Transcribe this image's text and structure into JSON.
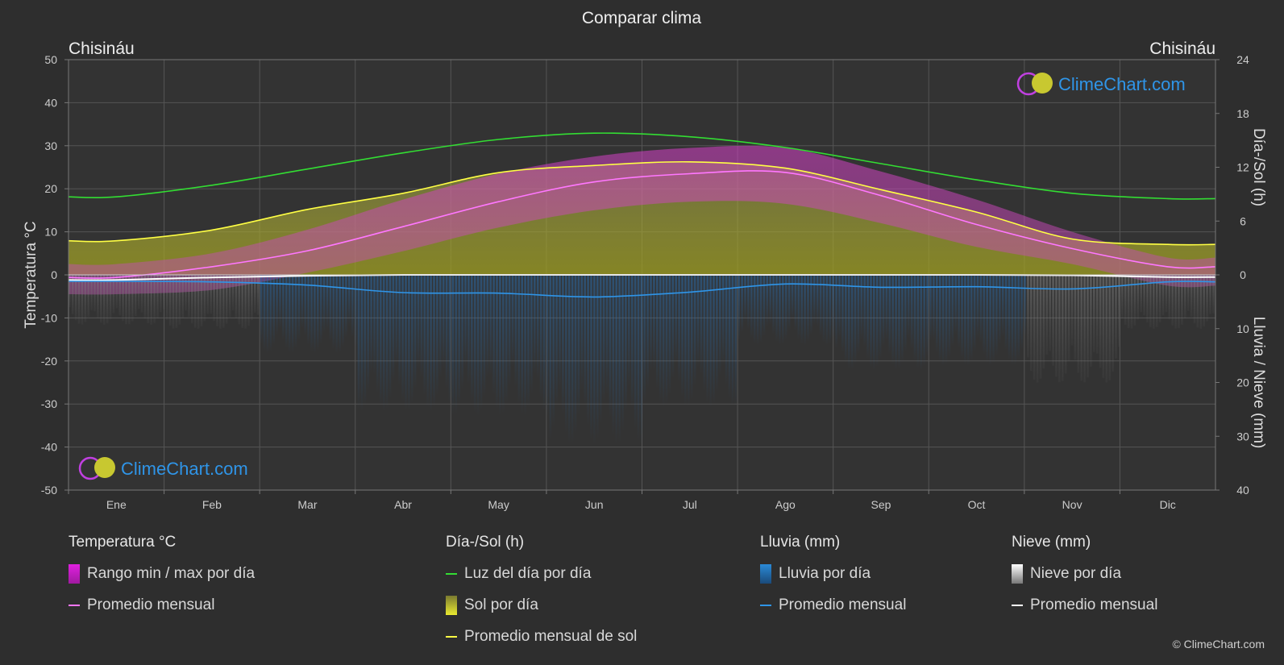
{
  "title": "Comparar clima",
  "location_left": "Chisináu",
  "location_right": "Chisináu",
  "brand_text": "ClimeChart.com",
  "copyright": "© ClimeChart.com",
  "legend": {
    "temperature": {
      "title": "Temperatura °C",
      "items": [
        {
          "label": "Rango min / max por día",
          "swatch": "box",
          "color": "#e020e0"
        },
        {
          "label": "Promedio mensual",
          "swatch": "line",
          "color": "#ff77ff"
        }
      ]
    },
    "daylight": {
      "title": "Día-/Sol (h)",
      "items": [
        {
          "label": "Luz del día por día",
          "swatch": "line",
          "color": "#33dd33"
        },
        {
          "label": "Sol por día",
          "swatch": "box",
          "color": "#d8d830"
        },
        {
          "label": "Promedio mensual de sol",
          "swatch": "line",
          "color": "#ffff44"
        }
      ]
    },
    "rain": {
      "title": "Lluvia (mm)",
      "items": [
        {
          "label": "Lluvia por día",
          "swatch": "box",
          "color": "#2a8ad8"
        },
        {
          "label": "Promedio mensual",
          "swatch": "line",
          "color": "#2f95e8"
        }
      ]
    },
    "snow": {
      "title": "Nieve (mm)",
      "items": [
        {
          "label": "Nieve por día",
          "swatch": "box",
          "color": "#dddddd"
        },
        {
          "label": "Promedio mensual",
          "swatch": "line",
          "color": "#ffffff"
        }
      ]
    }
  },
  "chart_data": {
    "type": "line",
    "title": "Comparar clima",
    "categories": [
      "Ene",
      "Feb",
      "Mar",
      "Abr",
      "May",
      "Jun",
      "Jul",
      "Ago",
      "Sep",
      "Oct",
      "Nov",
      "Dic"
    ],
    "y_left": {
      "label": "Temperatura °C",
      "min": -50,
      "max": 50,
      "ticks": [
        50,
        40,
        30,
        20,
        10,
        0,
        -10,
        -20,
        -30,
        -40,
        -50
      ]
    },
    "y_right_top": {
      "label": "Día-/Sol (h)",
      "min": 0,
      "max": 24,
      "ticks": [
        24,
        18,
        12,
        6,
        0
      ]
    },
    "y_right_bottom": {
      "label": "Lluvia / Nieve (mm)",
      "min": 0,
      "max": 40,
      "ticks": [
        10,
        20,
        30,
        40
      ]
    },
    "grid": true,
    "series": [
      {
        "name": "Luz del día por día",
        "axis": "hours",
        "color": "#33dd33",
        "values": [
          8.7,
          10.0,
          11.8,
          13.6,
          15.1,
          15.8,
          15.4,
          14.2,
          12.4,
          10.6,
          9.1,
          8.5
        ]
      },
      {
        "name": "Promedio mensual de sol",
        "axis": "hours",
        "color": "#ffff44",
        "values": [
          3.8,
          5.0,
          7.3,
          9.1,
          11.4,
          12.2,
          12.6,
          11.9,
          9.5,
          7.0,
          4.0,
          3.4
        ]
      },
      {
        "name": "Promedio mensual",
        "axis": "temperature",
        "color": "#ff77ff",
        "values": [
          -0.6,
          1.9,
          5.6,
          11.2,
          17.0,
          21.6,
          23.5,
          23.8,
          18.4,
          11.7,
          6.1,
          1.9
        ]
      },
      {
        "name": "Promedio mensual",
        "axis": "temperature",
        "color": "#ffffff",
        "values": [
          -1.2,
          -0.6,
          -0.2,
          0,
          0,
          0,
          0,
          0,
          0,
          0,
          -0.1,
          -0.5
        ]
      },
      {
        "name": "Promedio mensual",
        "axis": "rain_mm",
        "color": "#2f95e8",
        "values": [
          1.2,
          1.3,
          1.9,
          3.3,
          3.4,
          4.1,
          3.2,
          1.7,
          2.3,
          2.2,
          2.6,
          1.3
        ]
      }
    ],
    "range_band": {
      "name": "Rango min / max por día",
      "axis": "temperature",
      "color": "#e020e0",
      "min": [
        -4.5,
        -3.5,
        0.5,
        5.5,
        11.0,
        15.0,
        17.0,
        16.5,
        12.0,
        6.5,
        2.5,
        -2.5
      ],
      "max": [
        2.5,
        5.0,
        10.5,
        17.5,
        23.5,
        27.5,
        29.5,
        29.5,
        24.0,
        17.5,
        10.0,
        4.0
      ]
    },
    "sun_band": {
      "name": "Sol por día",
      "axis": "hours",
      "color": "#d8d830",
      "values": [
        3.8,
        5.0,
        7.3,
        9.1,
        11.4,
        12.2,
        12.6,
        11.9,
        9.5,
        7.0,
        4.0,
        3.4
      ]
    }
  }
}
